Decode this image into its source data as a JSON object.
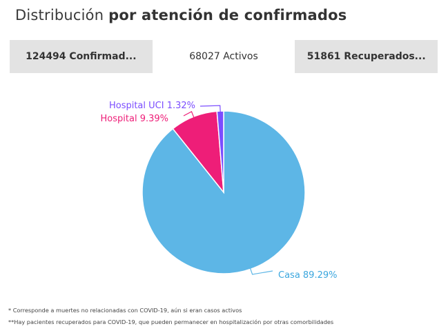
{
  "header": {
    "title_regular": "Distribución ",
    "title_bold": "por atención de confirmados"
  },
  "tabs": [
    {
      "label": "124494 Confirmad...",
      "active": false
    },
    {
      "label": "68027 Activos",
      "active": true
    },
    {
      "label": "51861 Recuperados...",
      "active": false
    }
  ],
  "chart_data": {
    "type": "pie",
    "slices": [
      {
        "name": "Casa",
        "label": "Casa 89.29%",
        "value": 89.29,
        "color": "#5db6e6",
        "label_color": "#3aa6de"
      },
      {
        "name": "Hospital",
        "label": "Hospital 9.39%",
        "value": 9.39,
        "color": "#ee1e78",
        "label_color": "#ee1e78"
      },
      {
        "name": "Hospital UCI",
        "label": "Hospital UCI 1.32%",
        "value": 1.32,
        "color": "#7b4dff",
        "label_color": "#7b4dff"
      }
    ]
  },
  "footnotes": [
    "* Corresponde a muertes no relacionadas con COVID-19, aún si eran casos activos",
    "**Hay pacientes recuperados para COVID-19, que pueden permanecer en hospitalización por otras comorbilidades"
  ]
}
